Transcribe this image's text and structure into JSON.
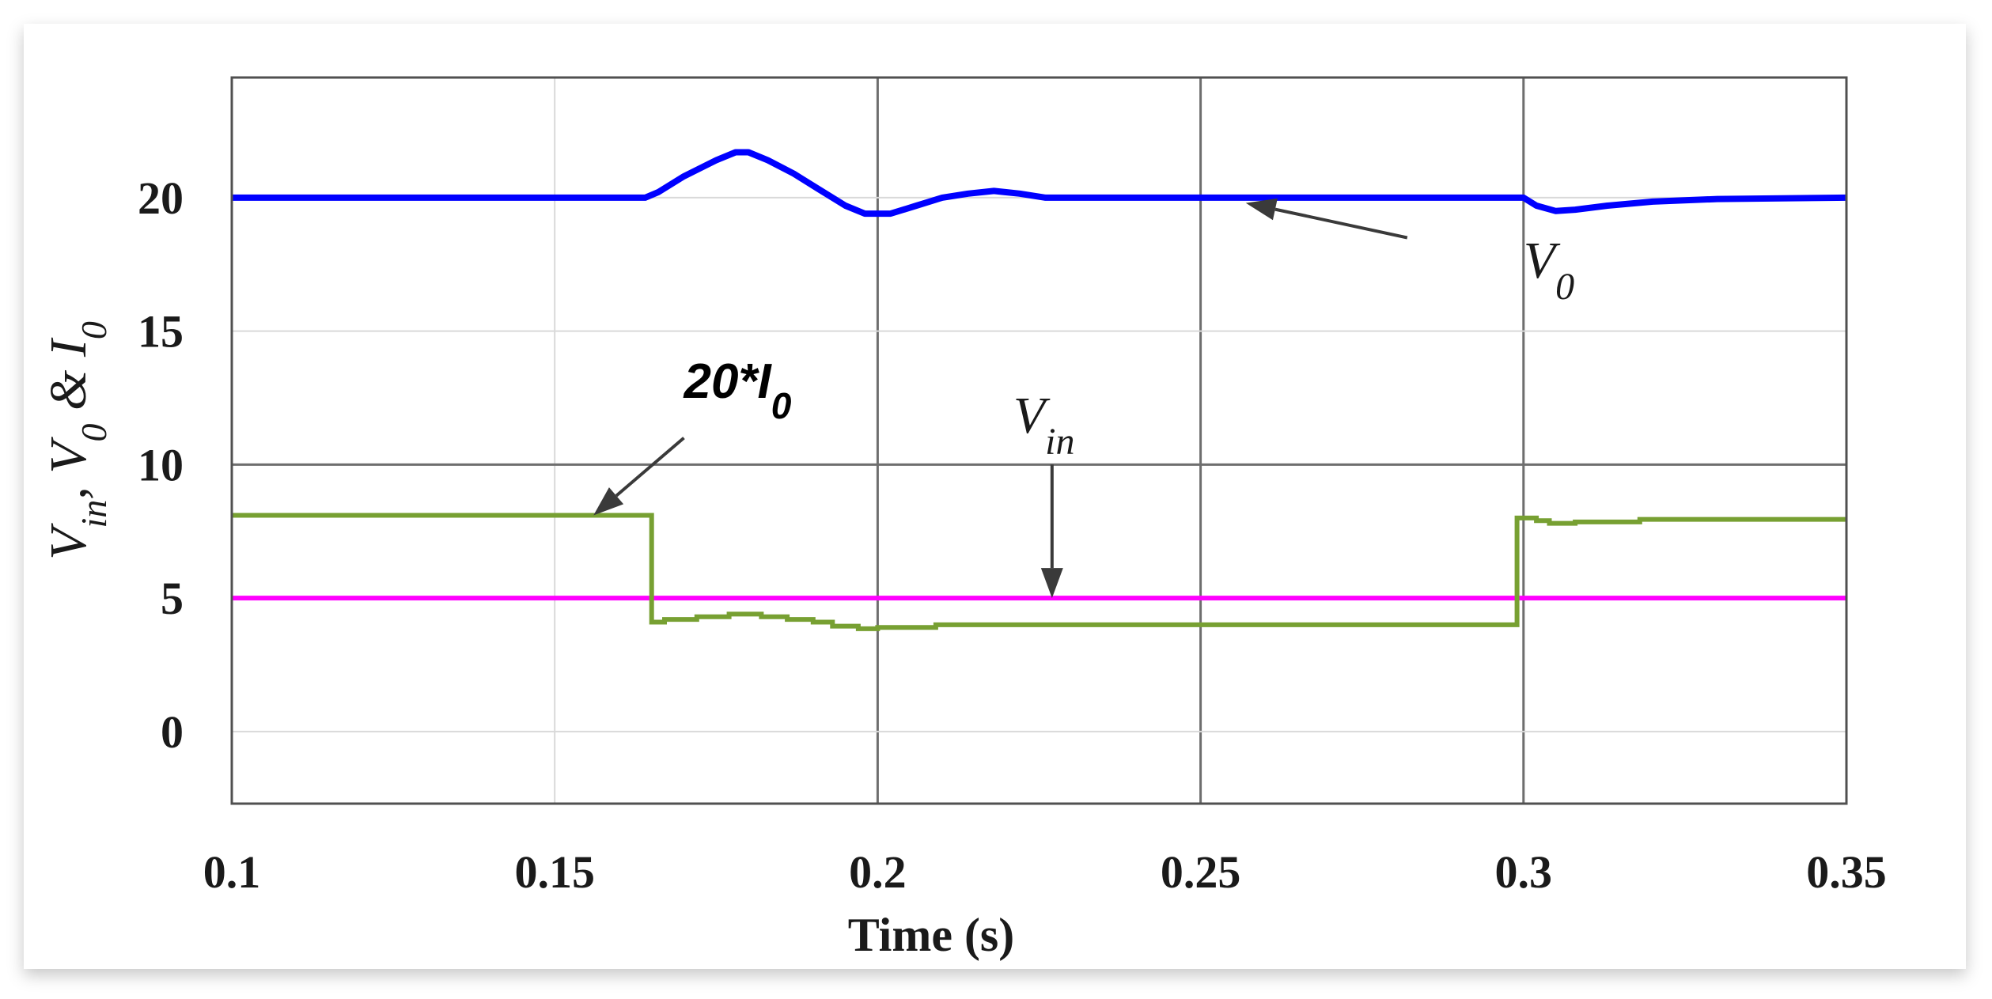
{
  "chart_data": {
    "type": "line",
    "xlabel": "Time (s)",
    "ylabel": {
      "parts": [
        {
          "text": "V",
          "sub": "in"
        },
        {
          "text": ", V",
          "sub": "0"
        },
        {
          "text": " & I",
          "sub": "0"
        }
      ]
    },
    "xlim": [
      0.1,
      0.35
    ],
    "ylim": [
      -2.7,
      24.5
    ],
    "xticks": [
      0.1,
      0.15,
      0.2,
      0.25,
      0.3,
      0.35
    ],
    "xtick_labels": [
      "0.1",
      "0.15",
      "0.2",
      "0.25",
      "0.3",
      "0.35"
    ],
    "yticks": [
      0,
      5,
      10,
      15,
      20
    ],
    "ytick_labels": [
      "0",
      "5",
      "10",
      "15",
      "20"
    ],
    "grid": true,
    "colors": {
      "V0": "#0000ff",
      "Vin": "#ff00ff",
      "I0": "#77a032",
      "arrow": "#3a3a3a",
      "grid_major": "#6e6e6e",
      "grid_minor": "#d9d9d9"
    },
    "series": [
      {
        "key": "V0",
        "step": false,
        "points": [
          [
            0.1,
            20.0
          ],
          [
            0.164,
            20.0
          ],
          [
            0.166,
            20.2
          ],
          [
            0.17,
            20.8
          ],
          [
            0.175,
            21.4
          ],
          [
            0.178,
            21.7
          ],
          [
            0.18,
            21.7
          ],
          [
            0.183,
            21.4
          ],
          [
            0.187,
            20.9
          ],
          [
            0.191,
            20.3
          ],
          [
            0.195,
            19.7
          ],
          [
            0.198,
            19.4
          ],
          [
            0.202,
            19.4
          ],
          [
            0.206,
            19.7
          ],
          [
            0.21,
            20.0
          ],
          [
            0.214,
            20.15
          ],
          [
            0.218,
            20.25
          ],
          [
            0.222,
            20.15
          ],
          [
            0.226,
            20.0
          ],
          [
            0.3,
            20.0
          ],
          [
            0.302,
            19.7
          ],
          [
            0.305,
            19.5
          ],
          [
            0.308,
            19.55
          ],
          [
            0.313,
            19.7
          ],
          [
            0.32,
            19.85
          ],
          [
            0.33,
            19.95
          ],
          [
            0.35,
            20.0
          ]
        ]
      },
      {
        "key": "Vin",
        "step": false,
        "points": [
          [
            0.1,
            5.0
          ],
          [
            0.35,
            5.0
          ]
        ]
      },
      {
        "key": "I0",
        "step": true,
        "points": [
          [
            0.1,
            8.1
          ],
          [
            0.165,
            8.1
          ],
          [
            0.165,
            4.1
          ],
          [
            0.167,
            4.1
          ],
          [
            0.167,
            4.2
          ],
          [
            0.172,
            4.2
          ],
          [
            0.172,
            4.3
          ],
          [
            0.177,
            4.3
          ],
          [
            0.177,
            4.4
          ],
          [
            0.182,
            4.4
          ],
          [
            0.182,
            4.3
          ],
          [
            0.186,
            4.3
          ],
          [
            0.186,
            4.2
          ],
          [
            0.19,
            4.2
          ],
          [
            0.19,
            4.1
          ],
          [
            0.193,
            4.1
          ],
          [
            0.193,
            3.95
          ],
          [
            0.197,
            3.95
          ],
          [
            0.197,
            3.85
          ],
          [
            0.2,
            3.85
          ],
          [
            0.2,
            3.9
          ],
          [
            0.209,
            3.9
          ],
          [
            0.209,
            4.0
          ],
          [
            0.299,
            4.0
          ],
          [
            0.299,
            8.0
          ],
          [
            0.302,
            8.0
          ],
          [
            0.302,
            7.9
          ],
          [
            0.304,
            7.9
          ],
          [
            0.304,
            7.8
          ],
          [
            0.308,
            7.8
          ],
          [
            0.308,
            7.85
          ],
          [
            0.318,
            7.85
          ],
          [
            0.318,
            7.95
          ],
          [
            0.35,
            7.95
          ]
        ]
      }
    ],
    "annotations": [
      {
        "key": "V0",
        "label": "V",
        "sub": "0",
        "text_at": [
          0.3,
          17.0
        ],
        "arrow_from": [
          0.282,
          18.5
        ],
        "arrow_to": [
          0.257,
          19.8
        ]
      },
      {
        "key": "Vin",
        "label": "V",
        "sub": "in",
        "text_at": [
          0.221,
          11.2
        ],
        "arrow_from": [
          0.227,
          10.0
        ],
        "arrow_to": [
          0.227,
          5.0
        ]
      },
      {
        "key": "I0",
        "label": "20*I",
        "sub": "0",
        "text_at": [
          0.17,
          12.5
        ],
        "arrow_from": [
          0.17,
          11.0
        ],
        "arrow_to": [
          0.156,
          8.1
        ]
      }
    ]
  }
}
